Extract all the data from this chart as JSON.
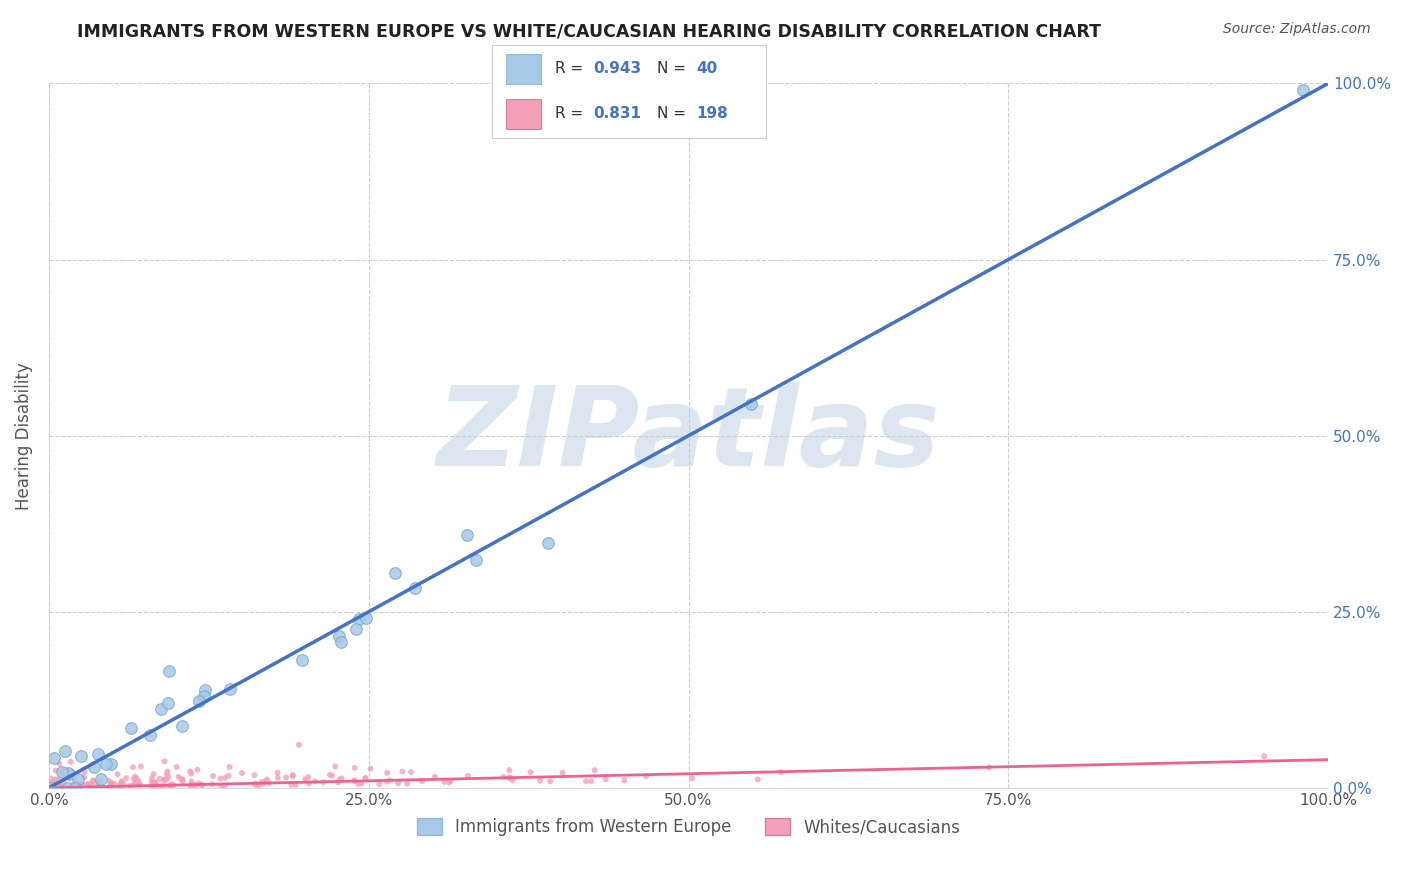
{
  "title": "IMMIGRANTS FROM WESTERN EUROPE VS WHITE/CAUCASIAN HEARING DISABILITY CORRELATION CHART",
  "source_text": "Source: ZipAtlas.com",
  "ylabel": "Hearing Disability",
  "xlim": [
    0,
    100
  ],
  "ylim": [
    0,
    100
  ],
  "xtick_vals": [
    0,
    25,
    50,
    75,
    100
  ],
  "ytick_vals": [
    0,
    25,
    50,
    75,
    100
  ],
  "legend_r1": "0.943",
  "legend_n1": "40",
  "legend_r2": "0.831",
  "legend_n2": "198",
  "blue_scatter_color": "#a8c8e8",
  "pink_scatter_color": "#f4a0b8",
  "line_blue_color": "#4472c4",
  "line_pink_color": "#f06090",
  "title_color": "#222222",
  "label_color": "#555555",
  "right_axis_color": "#4472c4",
  "watermark": "ZIPatlas",
  "watermark_color": "#dce6f0",
  "background_color": "#ffffff",
  "grid_color": "#c8c8c8",
  "legend_value_color": "#4472c4",
  "blue_seed": 10,
  "pink_seed": 7,
  "legend_label1": "Immigrants from Western Europe",
  "legend_label2": "Whites/Caucasians"
}
